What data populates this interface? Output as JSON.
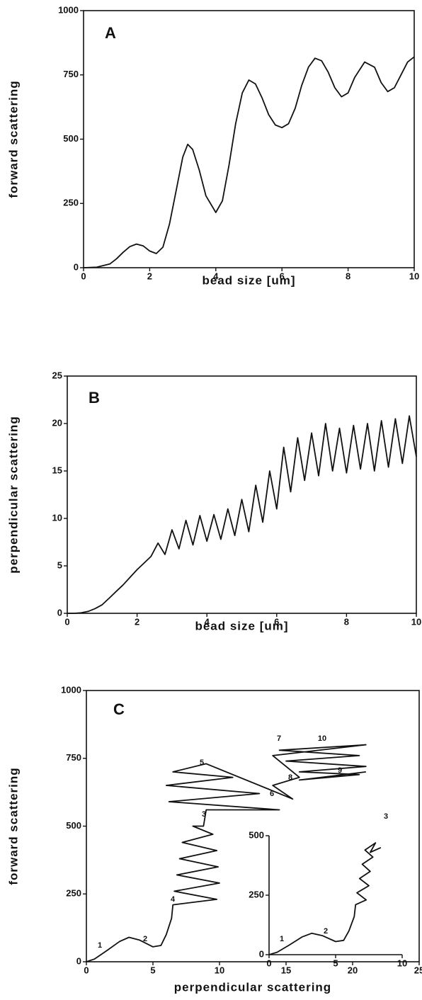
{
  "chart_data": [
    {
      "type": "line",
      "title": "A",
      "x_label": "bead size [um]",
      "y_label": "forward scattering",
      "frame": true,
      "color": "#111111",
      "xlim": [
        0,
        10
      ],
      "ylim": [
        0,
        1000
      ],
      "xticks": [
        0,
        2,
        4,
        6,
        8,
        10
      ],
      "yticks": [
        0,
        250,
        500,
        750,
        1000
      ],
      "x": [
        0,
        0.4,
        0.8,
        1.0,
        1.2,
        1.4,
        1.6,
        1.8,
        2.0,
        2.2,
        2.4,
        2.6,
        2.8,
        3.0,
        3.15,
        3.3,
        3.5,
        3.7,
        4.0,
        4.2,
        4.4,
        4.6,
        4.8,
        5.0,
        5.2,
        5.4,
        5.6,
        5.8,
        6.0,
        6.2,
        6.4,
        6.6,
        6.8,
        7.0,
        7.2,
        7.4,
        7.6,
        7.8,
        8.0,
        8.2,
        8.5,
        8.8,
        9.0,
        9.2,
        9.4,
        9.6,
        9.8,
        10
      ],
      "values": [
        0,
        2,
        15,
        35,
        60,
        82,
        92,
        85,
        65,
        55,
        80,
        170,
        300,
        430,
        480,
        460,
        380,
        280,
        215,
        260,
        400,
        560,
        680,
        730,
        715,
        660,
        595,
        555,
        545,
        560,
        620,
        710,
        780,
        815,
        805,
        760,
        700,
        665,
        680,
        740,
        800,
        780,
        720,
        685,
        700,
        750,
        800,
        820
      ]
    },
    {
      "type": "line",
      "title": "B",
      "x_label": "bead size [um]",
      "y_label": "perpendicular scattering",
      "frame": true,
      "color": "#111111",
      "xlim": [
        0,
        10
      ],
      "ylim": [
        0,
        25
      ],
      "xticks": [
        0,
        2,
        4,
        6,
        8,
        10
      ],
      "yticks": [
        0,
        5,
        10,
        15,
        20,
        25
      ],
      "x": [
        0,
        0.2,
        0.4,
        0.6,
        0.8,
        1.0,
        1.2,
        1.4,
        1.6,
        1.8,
        2.0,
        2.2,
        2.4,
        2.6,
        2.8,
        3.0,
        3.2,
        3.4,
        3.6,
        3.8,
        4.0,
        4.2,
        4.4,
        4.6,
        4.8,
        5.0,
        5.2,
        5.4,
        5.6,
        5.8,
        6.0,
        6.2,
        6.4,
        6.6,
        6.8,
        7.0,
        7.2,
        7.4,
        7.6,
        7.8,
        8.0,
        8.2,
        8.4,
        8.6,
        8.8,
        9.0,
        9.2,
        9.4,
        9.6,
        9.8,
        10.0
      ],
      "values": [
        0,
        0,
        0.05,
        0.2,
        0.5,
        0.9,
        1.6,
        2.3,
        3.0,
        3.8,
        4.6,
        5.3,
        6.0,
        7.4,
        6.2,
        8.8,
        6.8,
        9.8,
        7.2,
        10.3,
        7.6,
        10.4,
        7.8,
        11.0,
        8.2,
        12.0,
        8.6,
        13.5,
        9.6,
        15.0,
        11.0,
        17.5,
        12.8,
        18.5,
        14.0,
        19.0,
        14.5,
        20.0,
        15.0,
        19.5,
        14.8,
        19.8,
        15.2,
        20.0,
        15.0,
        20.3,
        15.4,
        20.5,
        15.8,
        20.8,
        16.5
      ]
    },
    {
      "type": "line",
      "title": "C",
      "x_label": "perpendicular scattering",
      "y_label": "forward scattering",
      "frame": true,
      "color": "#111111",
      "xlim": [
        0,
        25
      ],
      "ylim": [
        0,
        1000
      ],
      "xticks": [
        0,
        5,
        10,
        15,
        20,
        25
      ],
      "yticks": [
        0,
        250,
        500,
        750,
        1000
      ],
      "annotations": [
        "1",
        "2",
        "3",
        "4",
        "5",
        "6",
        "7",
        "8",
        "9",
        "10"
      ],
      "x": [
        0,
        0.6,
        1.5,
        2.5,
        3.2,
        4,
        5,
        5.6,
        6,
        6.4,
        6.5,
        9.8,
        6.6,
        10,
        6.8,
        9.9,
        7,
        9.8,
        7.2,
        9.5,
        8,
        8.8,
        9,
        14.5,
        6.2,
        13,
        6,
        11,
        6.5,
        9,
        15.5,
        14,
        16,
        15,
        14,
        21,
        14.5,
        20.5,
        15,
        21,
        16,
        20.5,
        16,
        21
      ],
      "values": [
        0,
        10,
        40,
        75,
        90,
        80,
        55,
        60,
        100,
        160,
        210,
        230,
        260,
        290,
        320,
        350,
        380,
        410,
        440,
        470,
        500,
        500,
        560,
        560,
        590,
        620,
        650,
        680,
        700,
        730,
        600,
        650,
        680,
        720,
        760,
        800,
        780,
        760,
        740,
        720,
        700,
        690,
        670,
        700
      ]
    },
    {
      "type": "line",
      "frame": false,
      "color": "#111111",
      "xlim": [
        0,
        10
      ],
      "ylim": [
        0,
        500
      ],
      "xticks": [
        0,
        5,
        10
      ],
      "yticks": [
        0,
        250,
        500
      ],
      "annotations": [
        "1",
        "2",
        "3"
      ],
      "x": [
        0,
        0.6,
        1.5,
        2.5,
        3.2,
        4,
        5,
        5.6,
        6,
        6.4,
        6.5,
        7.3,
        6.6,
        7.5,
        6.8,
        7.6,
        7,
        7.8,
        7.2,
        8,
        7.6,
        8.4
      ],
      "values": [
        0,
        10,
        40,
        75,
        90,
        80,
        55,
        60,
        100,
        160,
        210,
        230,
        260,
        290,
        320,
        350,
        380,
        410,
        440,
        470,
        430,
        450
      ]
    }
  ]
}
